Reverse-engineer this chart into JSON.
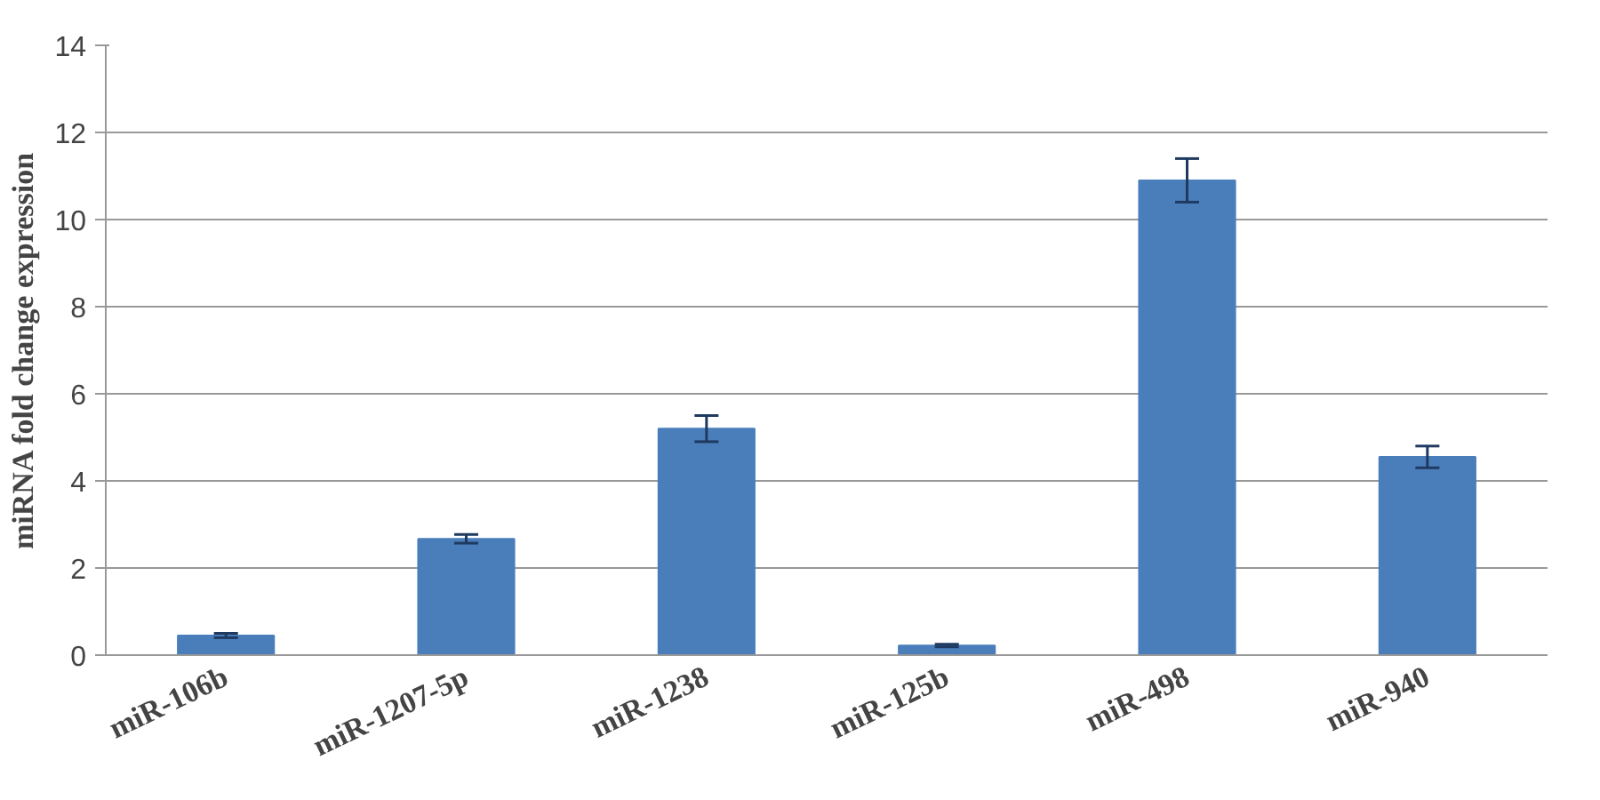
{
  "chart_data": {
    "type": "bar",
    "ylabel": "miRNA fold change expression",
    "categories": [
      "miR-106b",
      "miR-1207-5p",
      "miR-1238",
      "miR-125b",
      "miR-498",
      "miR-940"
    ],
    "values": [
      0.45,
      2.67,
      5.2,
      0.22,
      10.9,
      4.55
    ],
    "errors": [
      0.05,
      0.1,
      0.3,
      0.03,
      0.5,
      0.25
    ],
    "color": "#4a7ebb",
    "ylim": [
      0,
      14
    ],
    "yticks": [
      0,
      2,
      4,
      6,
      8,
      10,
      12,
      14
    ],
    "grid": "y"
  }
}
